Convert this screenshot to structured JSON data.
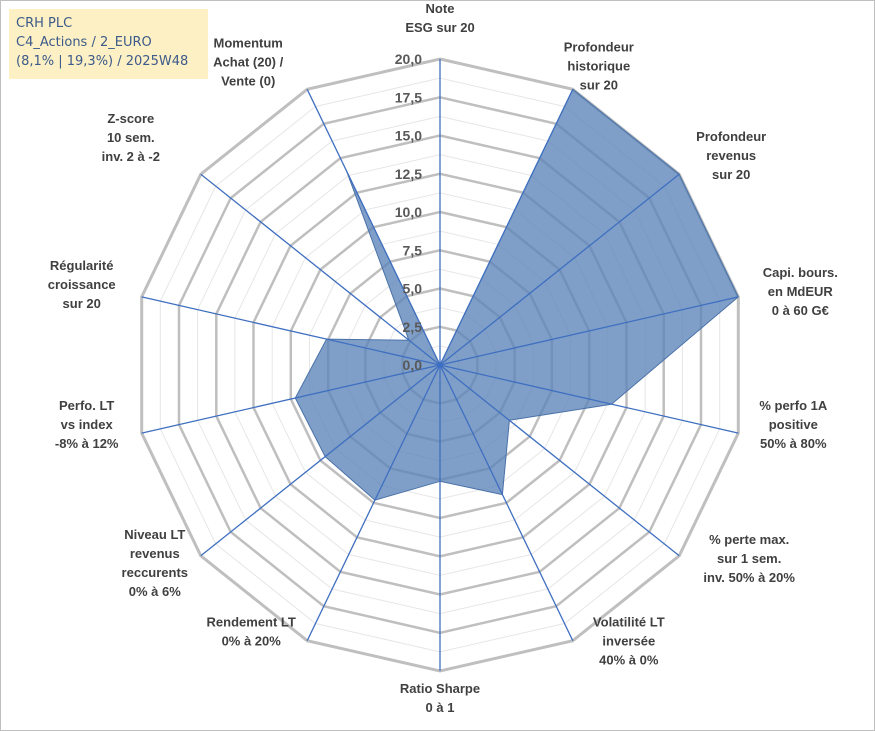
{
  "info_box": {
    "lines": [
      "CRH PLC",
      "C4_Actions / 2_EURO",
      "(8,1% | 19,3%) / 2025W48"
    ]
  },
  "colors": {
    "fill": "#5b84b8",
    "fill_opacity": 0.78,
    "spoke": "#3f6fc0",
    "grid_major": "#bfbfbf",
    "grid_minor": "#e6e6e6",
    "info_box_bg": "#fdf0c4",
    "info_box_text": "#3c5a8a"
  },
  "chart_data": {
    "type": "radar",
    "title": "",
    "rmin": 0,
    "rmax": 20,
    "tick_labels": [
      "0,0",
      "2,5",
      "5,0",
      "7,5",
      "10,0",
      "12,5",
      "15,0",
      "17,5",
      "20,0"
    ],
    "axes": [
      [
        "Note",
        "ESG sur 20"
      ],
      [
        "Profondeur",
        "historique",
        "sur 20"
      ],
      [
        "Profondeur",
        "revenus",
        "sur 20"
      ],
      [
        "Capi. bours.",
        "en MdEUR",
        "0 à 60 G€"
      ],
      [
        "% perfo 1A",
        "positive",
        "50% à 80%"
      ],
      [
        "% perte max.",
        "sur 1 sem.",
        "inv. 50% à 20%"
      ],
      [
        "Volatilité LT",
        "inversée",
        "40% à 0%"
      ],
      [
        "Ratio Sharpe",
        "0 à 1"
      ],
      [
        "Rendement LT",
        "0% à 20%"
      ],
      [
        "Niveau LT",
        "revenus",
        "reccurents",
        "0% à 6%"
      ],
      [
        "Perfo. LT",
        "vs index",
        "-8% à 12%"
      ],
      [
        "Régularité",
        "croissance",
        "sur 20"
      ],
      [
        "Z-score",
        "10 sem.",
        "inv. 2 à -2"
      ],
      [
        "Momentum",
        "Achat (20) /",
        "Vente (0)"
      ]
    ],
    "series": [
      {
        "values": [
          0,
          20,
          20,
          20,
          11.5,
          5.8,
          9.4,
          7.6,
          9.8,
          9.6,
          9.7,
          7.6,
          2.6,
          14.1
        ]
      }
    ]
  }
}
